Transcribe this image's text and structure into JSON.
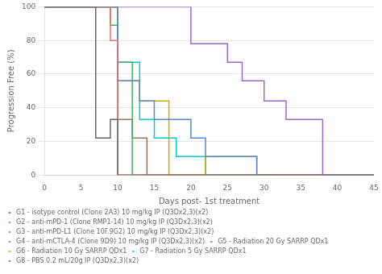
{
  "chart_data": {
    "type": "step",
    "xlabel": "Days post- 1st treatment",
    "ylabel": "Progression Free (%)",
    "xlim": [
      0,
      45
    ],
    "ylim": [
      0,
      100
    ],
    "xticks": [
      0,
      5,
      10,
      15,
      20,
      25,
      30,
      35,
      40,
      45
    ],
    "yticks": [
      0,
      20,
      40,
      60,
      80,
      100
    ],
    "grid": "y",
    "legend": "bottom",
    "series": [
      {
        "name": "G1 - isotype control (Clone 2A3) 10 mg/kg IP (Q3Dx2,3)(x2)",
        "color": "#666666",
        "x": [
          0,
          7,
          9,
          10,
          45
        ],
        "values": [
          100,
          22,
          33,
          0,
          0
        ]
      },
      {
        "name": "G2 - anti-mPD-1 (Clone RMP1-14) 10 mg/kg IP (Q3Dx2,3)(x2)",
        "color": "#e87070",
        "x": [
          0,
          9,
          10,
          45
        ],
        "values": [
          100,
          80,
          0,
          0
        ]
      },
      {
        "name": "G3 - anti-mPD-L1 (Clone 10F.9G2) 10 mg/kg IP (Q3Dx2,3)(x2)",
        "color": "#5588cc",
        "x": [
          0,
          10,
          13,
          15,
          20,
          22,
          25,
          29,
          45
        ],
        "values": [
          100,
          56,
          44,
          33,
          22,
          11,
          11,
          0,
          0
        ]
      },
      {
        "name": "G4 - anti-mCTLA-4 (Clone 9D9) 10 mg/kg IP (Q3Dx2,3)(x2)",
        "color": "#44aa66",
        "x": [
          0,
          9,
          10,
          12,
          45
        ],
        "values": [
          100,
          89,
          67,
          0,
          0
        ]
      },
      {
        "name": "G5 - Radiation 20 Gy SARRP QDx1",
        "color": "#9966cc",
        "x": [
          0,
          20,
          25,
          27,
          30,
          33,
          36,
          38,
          41,
          45
        ],
        "values": [
          100,
          78,
          67,
          56,
          44,
          33,
          33,
          0,
          0,
          0
        ]
      },
      {
        "name": "G6 - Radiation 10 Gy SARRP QDx1",
        "color": "#ccaa00",
        "x": [
          0,
          10,
          13,
          17,
          22,
          25,
          29,
          45
        ],
        "values": [
          100,
          56,
          44,
          0,
          11,
          11,
          0,
          0
        ]
      },
      {
        "name": "G7 - Radiation 5 Gy SARRP QDx1",
        "color": "#00cccc",
        "x": [
          0,
          10,
          13,
          15,
          18,
          20,
          22,
          45
        ],
        "values": [
          100,
          67,
          33,
          22,
          11,
          11,
          0,
          0
        ]
      },
      {
        "name": "G8 - PBS 0.2 mL/20g IP (Q3Dx2,3)(x2)",
        "color": "#997755",
        "x": [
          0,
          10,
          12,
          14,
          45
        ],
        "values": [
          100,
          33,
          22,
          0,
          0
        ]
      }
    ]
  }
}
